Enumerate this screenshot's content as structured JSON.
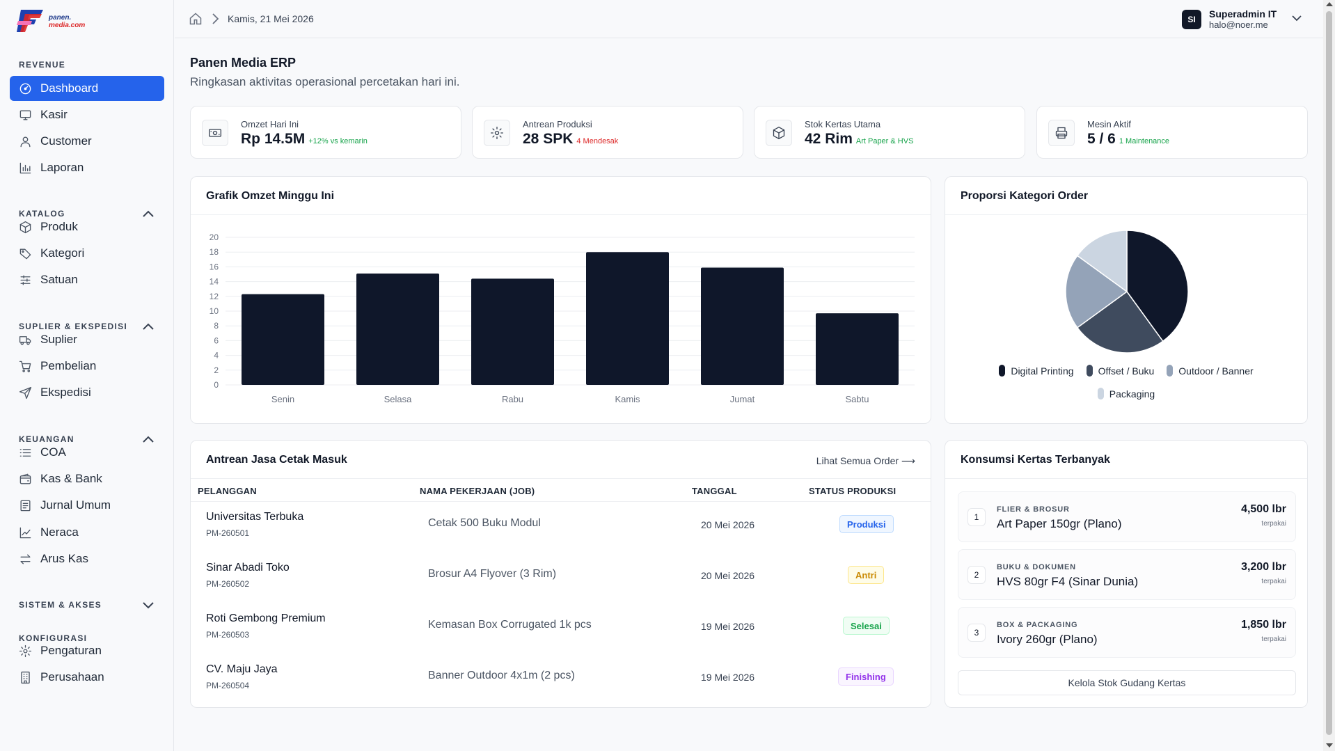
{
  "brand": {
    "line1": "panen.",
    "line2": "media.com"
  },
  "sidebar": {
    "sections": [
      {
        "title": "REVENUE",
        "collapsible": false,
        "expanded": true,
        "items": [
          {
            "label": "Dashboard",
            "icon": "dashboard-icon",
            "active": true
          },
          {
            "label": "Kasir",
            "icon": "monitor-icon"
          },
          {
            "label": "Customer",
            "icon": "user-icon"
          },
          {
            "label": "Laporan",
            "icon": "bar-chart-icon"
          }
        ]
      },
      {
        "title": "KATALOG",
        "collapsible": true,
        "expanded": true,
        "items": [
          {
            "label": "Produk",
            "icon": "box-icon"
          },
          {
            "label": "Kategori",
            "icon": "tag-icon"
          },
          {
            "label": "Satuan",
            "icon": "sliders-icon"
          }
        ]
      },
      {
        "title": "SUPLIER & EKSPEDISI",
        "collapsible": true,
        "expanded": true,
        "items": [
          {
            "label": "Suplier",
            "icon": "truck-icon"
          },
          {
            "label": "Pembelian",
            "icon": "cart-icon"
          },
          {
            "label": "Ekspedisi",
            "icon": "send-icon"
          }
        ]
      },
      {
        "title": "KEUANGAN",
        "collapsible": true,
        "expanded": true,
        "items": [
          {
            "label": "COA",
            "icon": "list-icon"
          },
          {
            "label": "Kas & Bank",
            "icon": "wallet-icon"
          },
          {
            "label": "Jurnal Umum",
            "icon": "journal-icon"
          },
          {
            "label": "Neraca",
            "icon": "trend-icon"
          },
          {
            "label": "Arus Kas",
            "icon": "arrows-icon"
          }
        ]
      },
      {
        "title": "SISTEM & AKSES",
        "collapsible": true,
        "expanded": false,
        "items": []
      },
      {
        "title": "KONFIGURASI",
        "collapsible": false,
        "expanded": true,
        "items": [
          {
            "label": "Pengaturan",
            "icon": "gear-icon"
          },
          {
            "label": "Perusahaan",
            "icon": "building-icon"
          }
        ]
      }
    ]
  },
  "topbar": {
    "breadcrumb_date": "Kamis, 21 Mei 2026",
    "user": {
      "initials": "SI",
      "name": "Superadmin IT",
      "email": "halo@noer.me"
    }
  },
  "page": {
    "title": "Panen Media ERP",
    "subtitle": "Ringkasan aktivitas operasional percetakan hari ini."
  },
  "stats": [
    {
      "label": "Omzet Hari Ini",
      "value": "Rp 14.5M",
      "note": "+12% vs kemarin",
      "note_color": "#16a34a",
      "icon": "cash-icon"
    },
    {
      "label": "Antrean Produksi",
      "value": "28 SPK",
      "note": "4 Mendesak",
      "note_color": "#dc2626",
      "icon": "gear-icon"
    },
    {
      "label": "Stok Kertas Utama",
      "value": "42 Rim",
      "note": "Art Paper & HVS",
      "note_color": "#16a34a",
      "icon": "box-icon"
    },
    {
      "label": "Mesin Aktif",
      "value": "5 / 6",
      "note": "1 Maintenance",
      "note_color": "#16a34a",
      "icon": "printer-icon"
    }
  ],
  "bar_panel": {
    "title": "Grafik Omzet Minggu Ini"
  },
  "pie_panel": {
    "title": "Proporsi Kategori Order"
  },
  "chart_data": [
    {
      "type": "bar",
      "title": "Grafik Omzet Minggu Ini",
      "categories": [
        "Senin",
        "Selasa",
        "Rabu",
        "Kamis",
        "Jumat",
        "Sabtu"
      ],
      "values": [
        12.3,
        15.1,
        14.4,
        18.0,
        15.9,
        9.7
      ],
      "ylim": [
        0,
        20
      ],
      "yticks": [
        0,
        2,
        4,
        6,
        8,
        10,
        12,
        14,
        16,
        18,
        20
      ],
      "grid": true,
      "bar_color": "#0f172a"
    },
    {
      "type": "pie",
      "title": "Proporsi Kategori Order",
      "labels": [
        "Digital Printing",
        "Offset / Buku",
        "Outdoor / Banner",
        "Packaging"
      ],
      "values": [
        40,
        25,
        20,
        15
      ],
      "colors": [
        "#0f172a",
        "#3f4b5e",
        "#94a3b8",
        "#cbd5e1"
      ],
      "legend": "bottom"
    }
  ],
  "queue": {
    "title": "Antrean Jasa Cetak Masuk",
    "link": "Lihat Semua Order",
    "columns": [
      "PELANGGAN",
      "NAMA PEKERJAAN (JOB)",
      "TANGGAL",
      "STATUS PRODUKSI"
    ],
    "rows": [
      {
        "customer": "Universitas Terbuka",
        "code": "PM-260501",
        "job": "Cetak 500 Buku Modul",
        "date": "20 Mei 2026",
        "status": "Produksi",
        "status_color": "#2563eb",
        "status_bg": "#eff6ff",
        "status_border": "#bfdbfe"
      },
      {
        "customer": "Sinar Abadi Toko",
        "code": "PM-260502",
        "job": "Brosur A4 Flyover (3 Rim)",
        "date": "20 Mei 2026",
        "status": "Antri",
        "status_color": "#ca8a04",
        "status_bg": "#fefce8",
        "status_border": "#fde68a"
      },
      {
        "customer": "Roti Gembong Premium",
        "code": "PM-260503",
        "job": "Kemasan Box Corrugated 1k pcs",
        "date": "19 Mei 2026",
        "status": "Selesai",
        "status_color": "#16a34a",
        "status_bg": "#f0fdf4",
        "status_border": "#bbf7d0"
      },
      {
        "customer": "CV. Maju Jaya",
        "code": "PM-260504",
        "job": "Banner Outdoor 4x1m (2 pcs)",
        "date": "19 Mei 2026",
        "status": "Finishing",
        "status_color": "#9333ea",
        "status_bg": "#faf5ff",
        "status_border": "#e9d5ff"
      }
    ]
  },
  "paper": {
    "title": "Konsumsi Kertas Terbanyak",
    "items": [
      {
        "rank": "1",
        "category": "FLIER & BROSUR",
        "name": "Art Paper 150gr (Plano)",
        "qty": "4,500 lbr",
        "unit": "terpakai"
      },
      {
        "rank": "2",
        "category": "BUKU & DOKUMEN",
        "name": "HVS 80gr F4 (Sinar Dunia)",
        "qty": "3,200 lbr",
        "unit": "terpakai"
      },
      {
        "rank": "3",
        "category": "BOX & PACKAGING",
        "name": "Ivory 260gr (Plano)",
        "qty": "1,850 lbr",
        "unit": "terpakai"
      }
    ],
    "button": "Kelola Stok Gudang Kertas"
  }
}
